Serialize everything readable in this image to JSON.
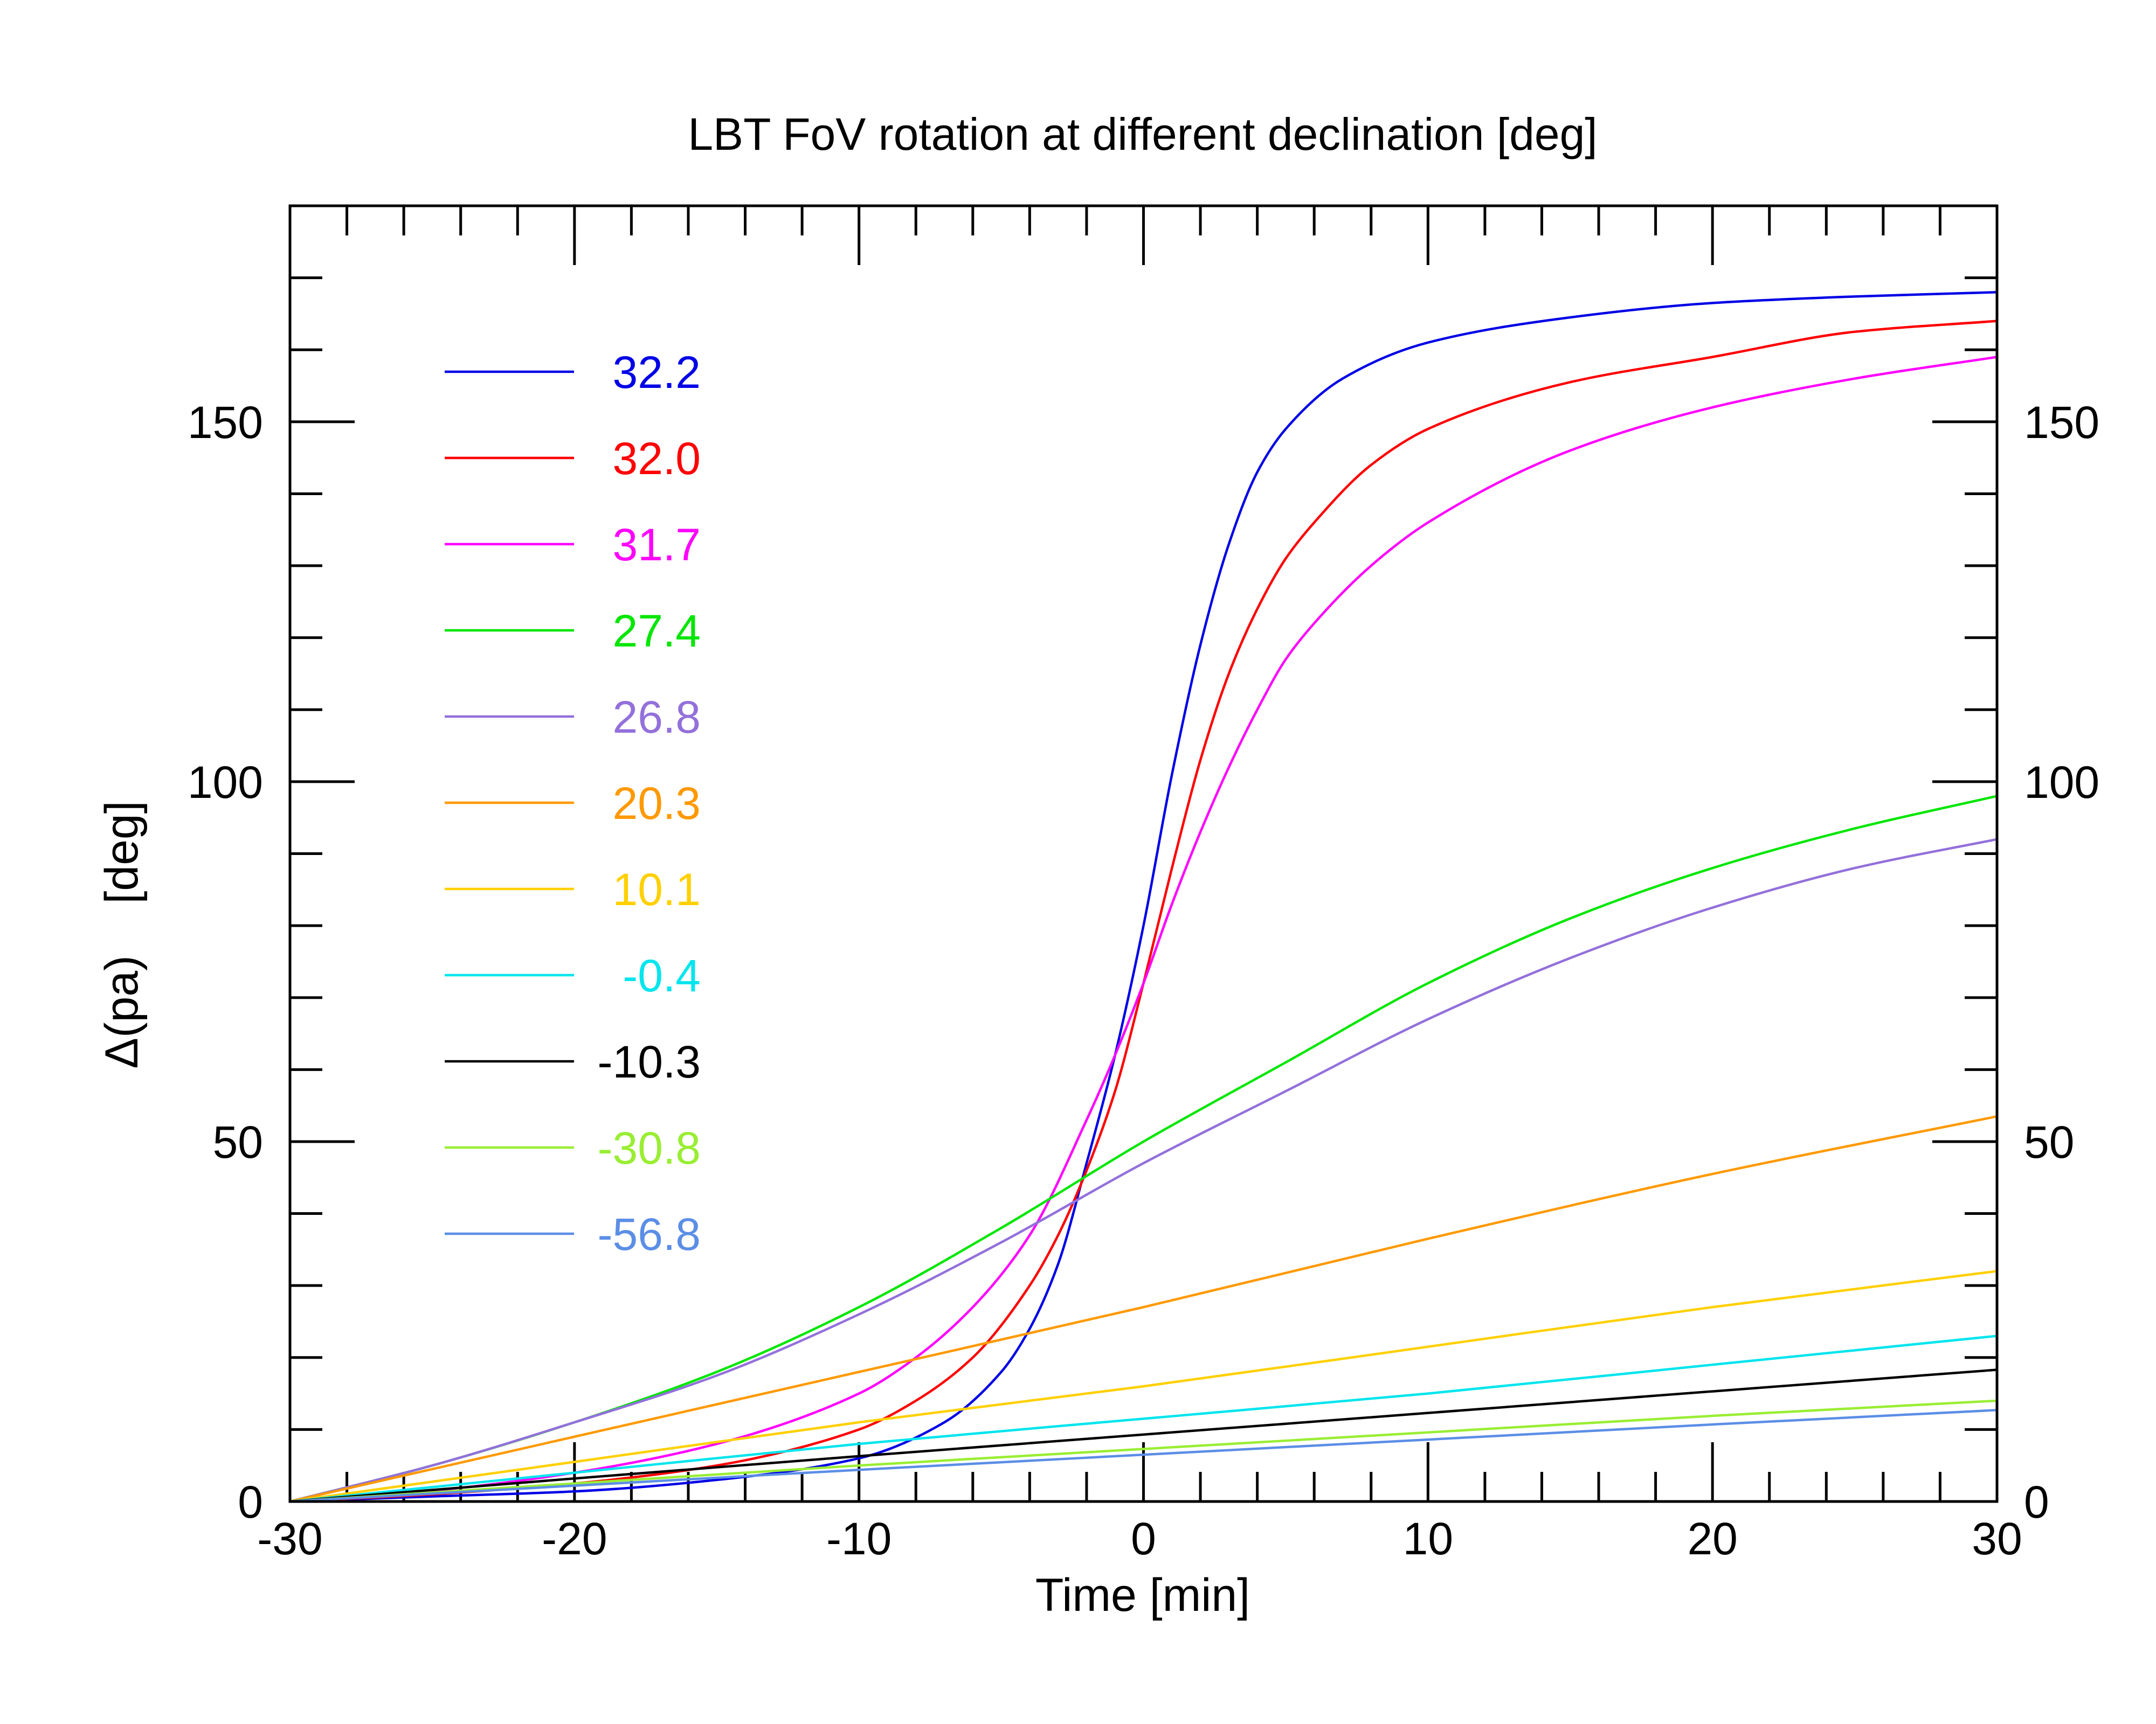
{
  "chart_data": {
    "type": "line",
    "title": "LBT FoV rotation at different declination [deg]",
    "xlabel": "Time [min]",
    "ylabel": "Δ(pa)    [deg]",
    "xlim": [
      -30,
      30
    ],
    "ylim": [
      0,
      180
    ],
    "x_ticks": [
      -30,
      -20,
      -10,
      0,
      10,
      20,
      30
    ],
    "x_tick_labels": [
      "-30",
      "-20",
      "-10",
      "0",
      "10",
      "20",
      "30"
    ],
    "y_ticks": [
      0,
      50,
      100,
      150
    ],
    "y_tick_labels": [
      "0",
      "50",
      "100",
      "150"
    ],
    "legend_placement": "top-left",
    "grid": false,
    "series": [
      {
        "name": "32.2",
        "color": "#0000e6",
        "x": [
          -30,
          -25,
          -20,
          -15,
          -10,
          -7,
          -5,
          -4,
          -3,
          -2,
          -1,
          0,
          1,
          2,
          3,
          4,
          5,
          7,
          10,
          15,
          20,
          25,
          30
        ],
        "y": [
          0,
          0.7,
          1.4,
          3,
          6,
          11,
          18,
          24,
          33,
          47,
          62,
          80,
          101,
          119,
          133,
          143,
          149,
          156,
          161,
          164.5,
          166.5,
          167.4,
          168
        ]
      },
      {
        "name": "32.0",
        "color": "#ff0000",
        "x": [
          -30,
          -25,
          -20,
          -15,
          -10,
          -8,
          -6,
          -4,
          -3,
          -2,
          -1,
          0,
          1,
          2,
          3,
          4,
          5,
          6,
          8,
          10,
          15,
          20,
          25,
          30
        ],
        "y": [
          0,
          1,
          2.5,
          5,
          10,
          14,
          20,
          30,
          37,
          46,
          57,
          72,
          88,
          103,
          115,
          124,
          131,
          136,
          144,
          149,
          155.5,
          159,
          162.5,
          164
        ]
      },
      {
        "name": "31.7",
        "color": "#ff00ff",
        "x": [
          -30,
          -25,
          -20,
          -15,
          -10,
          -8,
          -6,
          -4,
          -2,
          -1,
          0,
          1,
          2,
          3,
          4,
          5,
          6,
          8,
          10,
          15,
          20,
          25,
          30
        ],
        "y": [
          0,
          1.5,
          4,
          8,
          15,
          20,
          27,
          37,
          53,
          62,
          72,
          83,
          93,
          102,
          110,
          117,
          122,
          130,
          136,
          146,
          152,
          156,
          159
        ]
      },
      {
        "name": "27.4",
        "color": "#00e600",
        "x": [
          -30,
          -25,
          -20,
          -15,
          -10,
          -5,
          0,
          5,
          10,
          15,
          20,
          25,
          30
        ],
        "y": [
          0,
          5,
          11,
          18,
          27,
          38,
          50,
          61,
          72,
          81,
          88,
          93.5,
          98
        ]
      },
      {
        "name": "26.8",
        "color": "#9370db",
        "x": [
          -30,
          -25,
          -20,
          -15,
          -10,
          -5,
          0,
          5,
          10,
          15,
          20,
          25,
          30
        ],
        "y": [
          0,
          5,
          11,
          17.5,
          26,
          36,
          47,
          57,
          67,
          75.5,
          82.5,
          88,
          92
        ]
      },
      {
        "name": "20.3",
        "color": "#ff9900",
        "x": [
          -30,
          -20,
          -10,
          0,
          10,
          20,
          30
        ],
        "y": [
          0,
          9,
          18,
          27,
          36.5,
          45.5,
          53.5
        ]
      },
      {
        "name": "10.1",
        "color": "#ffd000",
        "x": [
          -30,
          -20,
          -10,
          0,
          10,
          20,
          30
        ],
        "y": [
          0,
          5.5,
          11,
          16,
          21.5,
          27,
          32
        ]
      },
      {
        "name": "-0.4",
        "color": "#00e5ee",
        "x": [
          -30,
          -20,
          -10,
          0,
          10,
          20,
          30
        ],
        "y": [
          0,
          4,
          8,
          11.5,
          15,
          19,
          23
        ]
      },
      {
        "name": "-10.3",
        "color": "#000000",
        "x": [
          -30,
          -20,
          -10,
          0,
          10,
          20,
          30
        ],
        "y": [
          0,
          3.2,
          6.3,
          9.3,
          12.3,
          15.3,
          18.3
        ]
      },
      {
        "name": "-30.8",
        "color": "#99ee33",
        "x": [
          -30,
          -20,
          -10,
          0,
          10,
          20,
          30
        ],
        "y": [
          0,
          2.5,
          5,
          7.3,
          9.6,
          11.9,
          14
        ]
      },
      {
        "name": "-56.8",
        "color": "#5b8ee6",
        "x": [
          -30,
          -20,
          -10,
          0,
          10,
          20,
          30
        ],
        "y": [
          0,
          2.2,
          4.4,
          6.5,
          8.6,
          10.7,
          12.7
        ]
      }
    ]
  }
}
